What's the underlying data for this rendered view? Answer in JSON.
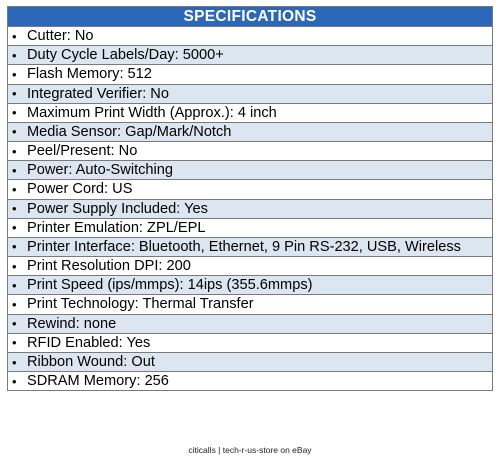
{
  "header": {
    "title": "SPECIFICATIONS"
  },
  "bullet_glyph": "•",
  "specs": [
    "Cutter: No",
    "Duty Cycle Labels/Day: 5000+",
    "Flash Memory: 512",
    "Integrated Verifier: No",
    "Maximum Print Width (Approx.): 4 inch",
    "Media Sensor: Gap/Mark/Notch",
    "Peel/Present: No",
    "Power: Auto-Switching",
    "Power Cord: US",
    "Power Supply Included: Yes",
    "Printer Emulation: ZPL/EPL",
    "Printer Interface: Bluetooth, Ethernet, 9 Pin RS-232, USB, Wireless",
    "Print Resolution DPI: 200",
    "Print Speed (ips/mmps): 14ips (355.6mmps)",
    "Print Technology: Thermal Transfer",
    "Rewind: none",
    "RFID Enabled: Yes",
    "Ribbon Wound: Out",
    "SDRAM Memory: 256"
  ],
  "footer": {
    "text": "citicalls | tech-r-us-store on eBay"
  },
  "colors": {
    "header_bg": "#2c68b7",
    "row_shade": "#dce6f1",
    "border": "#7a7a7a"
  }
}
